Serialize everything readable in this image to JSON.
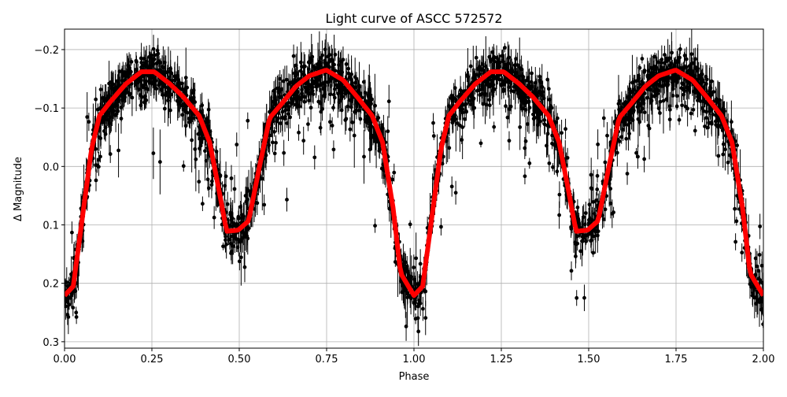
{
  "chart_data": {
    "type": "line",
    "title": "Light curve of ASCC 572572",
    "xlabel": "Phase",
    "ylabel": "Δ Magnitude",
    "xlim": [
      0,
      2.0
    ],
    "ylim": [
      0.311,
      -0.235
    ],
    "y_inverted": true,
    "grid": true,
    "x_ticks": [
      "0.00",
      "0.25",
      "0.50",
      "0.75",
      "1.00",
      "1.25",
      "1.50",
      "1.75",
      "2.00"
    ],
    "x_tick_values": [
      0,
      0.25,
      0.5,
      0.75,
      1.0,
      1.25,
      1.5,
      1.75,
      2.0
    ],
    "y_ticks": [
      "−0.2",
      "−0.1",
      "0.0",
      "0.1",
      "0.2",
      "0.3"
    ],
    "y_tick_values": [
      -0.2,
      -0.1,
      0.0,
      0.1,
      0.2,
      0.3
    ],
    "series": [
      {
        "style": "black points with vertical error bars, scattered around the model",
        "color": "#000000"
      },
      {
        "style": "thick smoothed curve",
        "color": "#ff0000",
        "phase": [
          0,
          0.025,
          0.055,
          0.077,
          0.1,
          0.13,
          0.175,
          0.22,
          0.257,
          0.302,
          0.34,
          0.385,
          0.415,
          0.437,
          0.464,
          0.497,
          0.527,
          0.557,
          0.587,
          0.625,
          0.662,
          0.7,
          0.749,
          0.797,
          0.835,
          0.88,
          0.91,
          0.94,
          0.962,
          1.0
        ],
        "magnitude": [
          0.221,
          0.205,
          0.07,
          -0.029,
          -0.087,
          -0.11,
          -0.141,
          -0.162,
          -0.162,
          -0.141,
          -0.119,
          -0.087,
          -0.042,
          0.025,
          0.111,
          0.109,
          0.093,
          0.003,
          -0.083,
          -0.11,
          -0.137,
          -0.155,
          -0.165,
          -0.148,
          -0.121,
          -0.087,
          -0.042,
          0.07,
          0.183,
          0.221
        ],
        "repeats_with_period": 1.0
      }
    ]
  }
}
